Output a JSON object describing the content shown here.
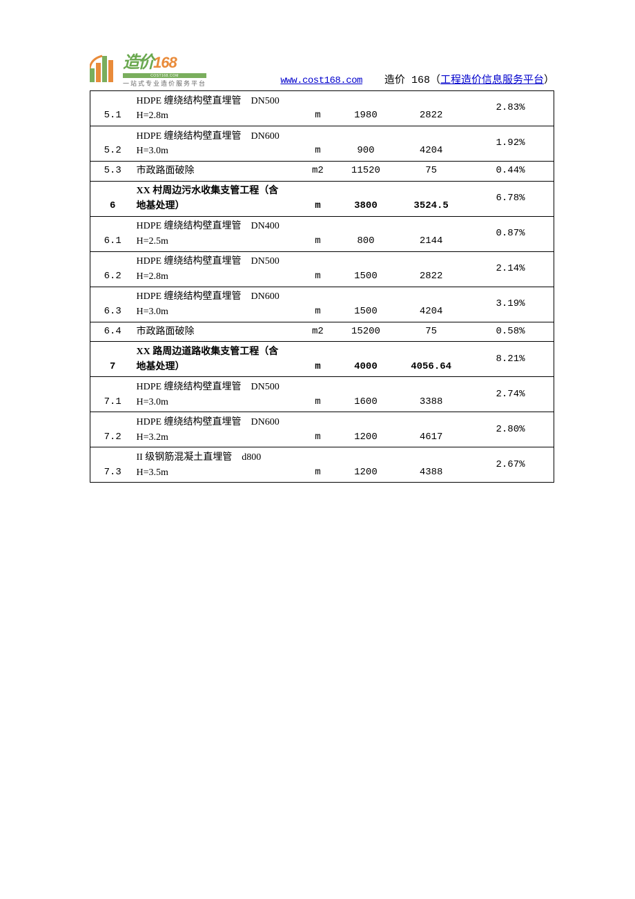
{
  "header": {
    "logo": {
      "cn": "造价",
      "num": "168",
      "bar": "COST168.COM",
      "sub": "一站式专业造价服务平台"
    },
    "url": "www.cost168.com",
    "brand_prefix": "造价",
    "brand_num": " 168",
    "brand_paren_open": "（",
    "brand_link": "工程造价信息服务平台",
    "brand_paren_close": "）"
  },
  "rows": [
    {
      "id": "5.1",
      "name_l1": "HDPE 缠绕结构壁直埋管　DN500",
      "name_l2": "H=2.8m",
      "unit": "m",
      "qty": "1980",
      "price": "2822",
      "pct": "2.83%",
      "bold": false
    },
    {
      "id": "5.2",
      "name_l1": "HDPE 缠绕结构壁直埋管　DN600",
      "name_l2": "H=3.0m",
      "unit": "m",
      "qty": "900",
      "price": "4204",
      "pct": "1.92%",
      "bold": false
    },
    {
      "id": "5.3",
      "name_l1": "市政路面破除",
      "name_l2": "",
      "unit": "m2",
      "qty": "11520",
      "price": "75",
      "pct": "0.44%",
      "bold": false
    },
    {
      "id": "6",
      "name_l1": "XX 村周边污水收集支管工程（含",
      "name_l2": "地基处理）",
      "unit": "m",
      "qty": "3800",
      "price": "3524.5",
      "pct": "6.78%",
      "bold": true
    },
    {
      "id": "6.1",
      "name_l1": "HDPE 缠绕结构壁直埋管　DN400",
      "name_l2": "H=2.5m",
      "unit": "m",
      "qty": "800",
      "price": "2144",
      "pct": "0.87%",
      "bold": false
    },
    {
      "id": "6.2",
      "name_l1": "HDPE 缠绕结构壁直埋管　DN500",
      "name_l2": "H=2.8m",
      "unit": "m",
      "qty": "1500",
      "price": "2822",
      "pct": "2.14%",
      "bold": false
    },
    {
      "id": "6.3",
      "name_l1": "HDPE 缠绕结构壁直埋管　DN600",
      "name_l2": "H=3.0m",
      "unit": "m",
      "qty": "1500",
      "price": "4204",
      "pct": "3.19%",
      "bold": false
    },
    {
      "id": "6.4",
      "name_l1": "市政路面破除",
      "name_l2": "",
      "unit": "m2",
      "qty": "15200",
      "price": "75",
      "pct": "0.58%",
      "bold": false
    },
    {
      "id": "7",
      "name_l1": "XX 路周边道路收集支管工程（含",
      "name_l2": "地基处理）",
      "unit": "m",
      "qty": "4000",
      "price": "4056.64",
      "pct": "8.21%",
      "bold": true
    },
    {
      "id": "7.1",
      "name_l1": "HDPE 缠绕结构壁直埋管　DN500",
      "name_l2": "H=3.0m",
      "unit": "m",
      "qty": "1600",
      "price": "3388",
      "pct": "2.74%",
      "bold": false
    },
    {
      "id": "7.2",
      "name_l1": "HDPE 缠绕结构壁直埋管　DN600",
      "name_l2": "H=3.2m",
      "unit": "m",
      "qty": "1200",
      "price": "4617",
      "pct": "2.80%",
      "bold": false
    },
    {
      "id": "7.3",
      "name_l1": "II 级钢筋混凝土直埋管　d800",
      "name_l2": "H=3.5m",
      "unit": "m",
      "qty": "1200",
      "price": "4388",
      "pct": "2.67%",
      "bold": false
    }
  ],
  "style": {
    "colors": {
      "link": "#0000cc",
      "logo_green": "#6aa84f",
      "logo_orange": "#e98b3a",
      "bar_green": "#7aae5d",
      "text": "#000000",
      "border": "#000000"
    }
  }
}
